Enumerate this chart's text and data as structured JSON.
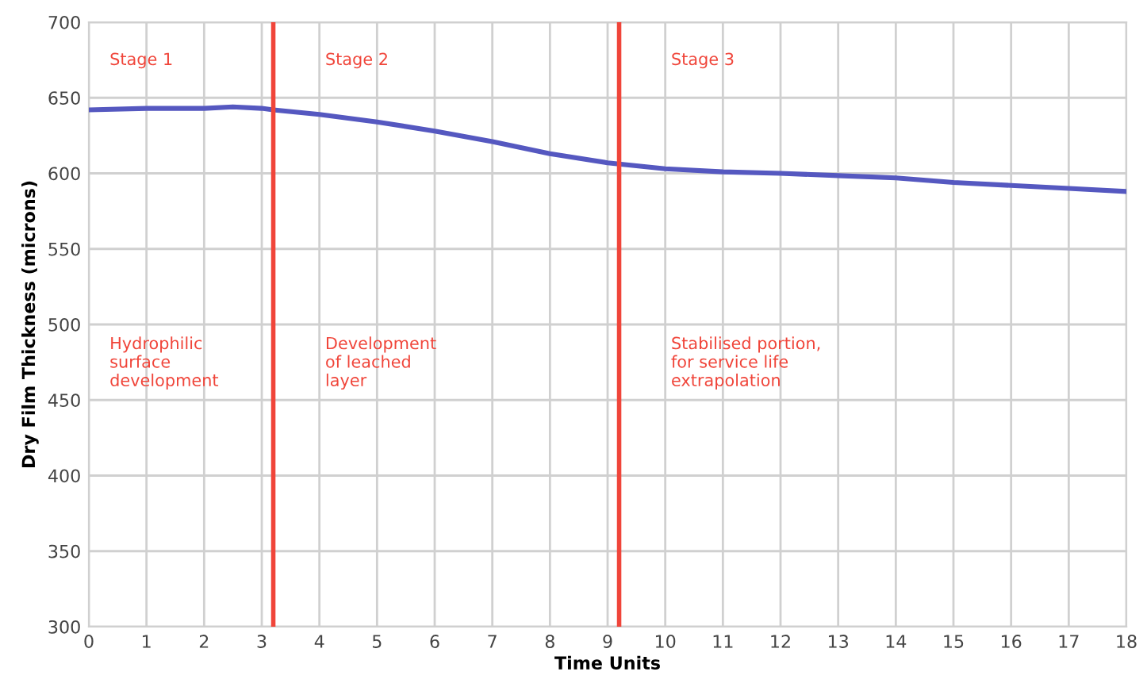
{
  "chart_data": {
    "type": "line",
    "xlabel": "Time Units",
    "ylabel": "Dry Film Thickness (microns)",
    "x": [
      0,
      1,
      2,
      2.5,
      3,
      3.2,
      4,
      5,
      6,
      7,
      8,
      9,
      10,
      11,
      12,
      13,
      14,
      15,
      16,
      17,
      18
    ],
    "series": [
      {
        "color": "#5558c0",
        "values": [
          642,
          643,
          643,
          644,
          643,
          642,
          639,
          634,
          628,
          621,
          613,
          607,
          603,
          601,
          600,
          598.5,
          597,
          594,
          592,
          590,
          588
        ]
      }
    ],
    "xlim": [
      0,
      18
    ],
    "xticks": [
      0,
      1,
      2,
      3,
      4,
      5,
      6,
      7,
      8,
      9,
      10,
      11,
      12,
      13,
      14,
      15,
      16,
      17,
      18
    ],
    "ylim": [
      300,
      700
    ],
    "yticks": [
      300,
      350,
      400,
      450,
      500,
      550,
      600,
      650,
      700
    ],
    "ref_lines": [
      {
        "axis": "x",
        "value": 3.2,
        "color": "#f0453a"
      },
      {
        "axis": "x",
        "value": 9.2,
        "color": "#f0453a"
      }
    ],
    "annotations": [
      "Stage 1",
      "Stage 2",
      "Stage 3",
      "Hydrophilic\nsurface\ndevelopment",
      "Development\nof leached\nlayer",
      "Stabilised portion,\nfor service life\nextrapolation"
    ],
    "grid": true,
    "line_style": "solid",
    "marker": "none"
  }
}
